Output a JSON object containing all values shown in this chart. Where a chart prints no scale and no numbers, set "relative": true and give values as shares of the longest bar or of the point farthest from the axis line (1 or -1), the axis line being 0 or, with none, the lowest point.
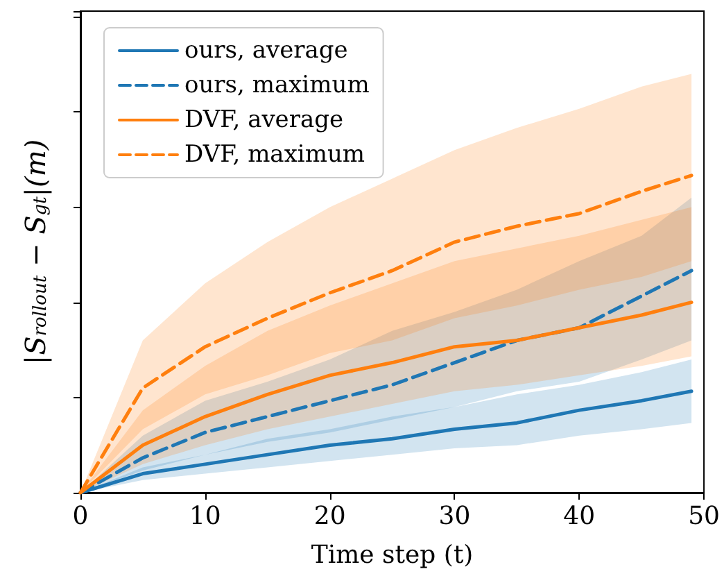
{
  "chart_data": {
    "type": "line",
    "relative": true,
    "xlabel": "Time step (t)",
    "ylabel": "|S$_{rollout}$ − S$_{gt}$|(m)",
    "x": [
      0,
      5,
      10,
      15,
      20,
      25,
      30,
      35,
      40,
      45,
      49
    ],
    "xlim": [
      0,
      50
    ],
    "xticks": [
      0,
      10,
      20,
      30,
      40,
      50
    ],
    "tick_labels": "x",
    "grid": false,
    "legend": "top left",
    "marker": "none",
    "series": [
      {
        "name": "ours, average",
        "color": "#1f77b4",
        "line_style": "solid",
        "values": [
          0,
          0.06,
          0.09,
          0.12,
          0.15,
          0.17,
          0.2,
          0.22,
          0.26,
          0.29,
          0.32
        ],
        "lower": [
          0,
          0.04,
          0.06,
          0.08,
          0.1,
          0.12,
          0.14,
          0.15,
          0.18,
          0.2,
          0.22
        ],
        "upper": [
          0,
          0.08,
          0.12,
          0.17,
          0.2,
          0.24,
          0.27,
          0.31,
          0.34,
          0.38,
          0.42
        ]
      },
      {
        "name": "ours, maximum",
        "color": "#1f77b4",
        "line_style": "dashed",
        "values": [
          0,
          0.11,
          0.19,
          0.24,
          0.29,
          0.34,
          0.41,
          0.48,
          0.52,
          0.62,
          0.7
        ],
        "lower": [
          0,
          0.07,
          0.12,
          0.16,
          0.19,
          0.23,
          0.27,
          0.32,
          0.35,
          0.42,
          0.48
        ],
        "upper": [
          0,
          0.18,
          0.29,
          0.35,
          0.42,
          0.51,
          0.57,
          0.64,
          0.73,
          0.81,
          0.93
        ]
      },
      {
        "name": "DVF, average",
        "color": "#ff7f0e",
        "line_style": "solid",
        "values": [
          0,
          0.15,
          0.24,
          0.31,
          0.37,
          0.41,
          0.46,
          0.48,
          0.52,
          0.56,
          0.6
        ],
        "lower": [
          0,
          0.09,
          0.15,
          0.2,
          0.24,
          0.28,
          0.32,
          0.34,
          0.37,
          0.4,
          0.43
        ],
        "upper": [
          0,
          0.26,
          0.4,
          0.51,
          0.59,
          0.66,
          0.73,
          0.77,
          0.81,
          0.86,
          0.9
        ]
      },
      {
        "name": "DVF, maximum",
        "color": "#ff7f0e",
        "line_style": "dashed",
        "values": [
          0,
          0.33,
          0.46,
          0.55,
          0.63,
          0.7,
          0.79,
          0.84,
          0.88,
          0.95,
          1
        ],
        "lower": [
          0,
          0.2,
          0.31,
          0.37,
          0.44,
          0.48,
          0.55,
          0.59,
          0.64,
          0.68,
          0.73
        ],
        "upper": [
          0,
          0.48,
          0.66,
          0.79,
          0.9,
          0.99,
          1.08,
          1.15,
          1.21,
          1.28,
          1.32
        ]
      }
    ]
  }
}
